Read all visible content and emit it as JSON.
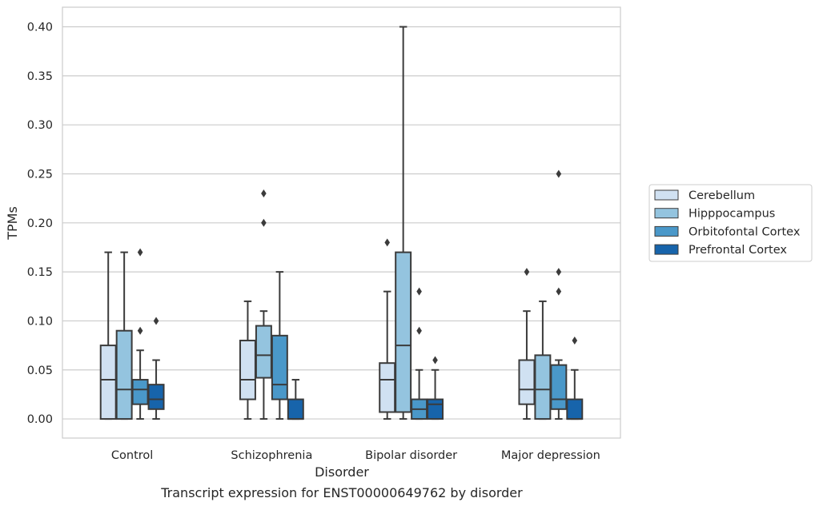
{
  "chart_data": {
    "type": "box",
    "title": "",
    "caption": "Transcript expression for ENST00000649762 by disorder",
    "xlabel": "Disorder",
    "ylabel": "TPMs",
    "ylim": [
      -0.0195,
      0.42
    ],
    "yticks": [
      "0.00",
      "0.05",
      "0.10",
      "0.15",
      "0.20",
      "0.25",
      "0.30",
      "0.35",
      "0.40"
    ],
    "grid": "horizontal",
    "legend_position": "outside-right",
    "categories": [
      "Control",
      "Schizophrenia",
      "Bipolar disorder",
      "Major depression"
    ],
    "series": [
      {
        "name": "Cerebellum",
        "color": "#d0e1f2",
        "boxes": [
          {
            "whislo": 0.0,
            "q1": 0.0,
            "med": 0.04,
            "q3": 0.075,
            "whishi": 0.17,
            "fliers": []
          },
          {
            "whislo": 0.0,
            "q1": 0.02,
            "med": 0.04,
            "q3": 0.08,
            "whishi": 0.12,
            "fliers": []
          },
          {
            "whislo": 0.0,
            "q1": 0.007,
            "med": 0.04,
            "q3": 0.057,
            "whishi": 0.13,
            "fliers": [
              0.18
            ]
          },
          {
            "whislo": 0.0,
            "q1": 0.015,
            "med": 0.03,
            "q3": 0.06,
            "whishi": 0.11,
            "fliers": [
              0.15
            ]
          }
        ]
      },
      {
        "name": "Hipppocampus",
        "color": "#94c4df",
        "boxes": [
          {
            "whislo": 0.0,
            "q1": 0.0,
            "med": 0.03,
            "q3": 0.09,
            "whishi": 0.17,
            "fliers": []
          },
          {
            "whislo": 0.0,
            "q1": 0.042,
            "med": 0.065,
            "q3": 0.095,
            "whishi": 0.11,
            "fliers": [
              0.2,
              0.23
            ]
          },
          {
            "whislo": 0.0,
            "q1": 0.007,
            "med": 0.075,
            "q3": 0.17,
            "whishi": 0.4,
            "fliers": []
          },
          {
            "whislo": 0.0,
            "q1": 0.0,
            "med": 0.03,
            "q3": 0.065,
            "whishi": 0.12,
            "fliers": []
          }
        ]
      },
      {
        "name": "Orbitofontal Cortex",
        "color": "#4a98c9",
        "boxes": [
          {
            "whislo": 0.0,
            "q1": 0.015,
            "med": 0.03,
            "q3": 0.04,
            "whishi": 0.07,
            "fliers": [
              0.09,
              0.17
            ]
          },
          {
            "whislo": 0.0,
            "q1": 0.02,
            "med": 0.035,
            "q3": 0.085,
            "whishi": 0.15,
            "fliers": []
          },
          {
            "whislo": 0.0,
            "q1": 0.0,
            "med": 0.01,
            "q3": 0.02,
            "whishi": 0.05,
            "fliers": [
              0.09,
              0.13
            ]
          },
          {
            "whislo": 0.0,
            "q1": 0.01,
            "med": 0.02,
            "q3": 0.055,
            "whishi": 0.06,
            "fliers": [
              0.13,
              0.15,
              0.25
            ]
          }
        ]
      },
      {
        "name": "Prefrontal Cortex",
        "color": "#1764ab",
        "boxes": [
          {
            "whislo": 0.0,
            "q1": 0.01,
            "med": 0.02,
            "q3": 0.035,
            "whishi": 0.06,
            "fliers": [
              0.1
            ]
          },
          {
            "whislo": 0.0,
            "q1": 0.0,
            "med": 0.0,
            "q3": 0.02,
            "whishi": 0.04,
            "fliers": []
          },
          {
            "whislo": 0.0,
            "q1": 0.0,
            "med": 0.015,
            "q3": 0.02,
            "whishi": 0.05,
            "fliers": [
              0.06
            ]
          },
          {
            "whislo": 0.0,
            "q1": 0.0,
            "med": 0.0,
            "q3": 0.02,
            "whishi": 0.05,
            "fliers": [
              0.08
            ]
          }
        ]
      }
    ]
  }
}
